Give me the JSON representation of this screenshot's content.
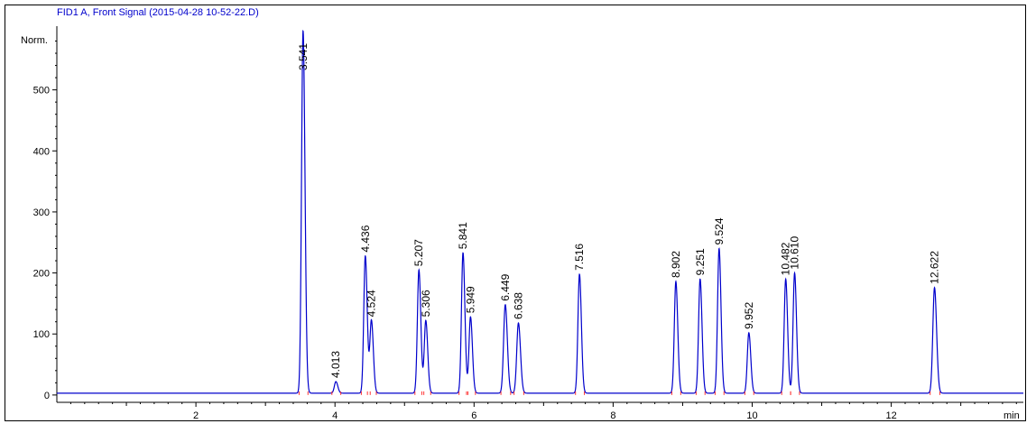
{
  "chart_data": {
    "type": "line",
    "title": "FID1 A, Front Signal (2015-04-28 10-52-22.D)",
    "ylabel": "Norm.",
    "xlabel": "min",
    "xlim": [
      0,
      13.9
    ],
    "ylim": [
      -12,
      597
    ],
    "x_ticks": [
      2,
      4,
      6,
      8,
      10,
      12
    ],
    "y_ticks": [
      0,
      100,
      200,
      300,
      400,
      500
    ],
    "baseline": 3,
    "colors": {
      "trace": "#0000cc",
      "title": "#0000cc",
      "baseline_marks": "#ff3333"
    },
    "series": [
      {
        "peaks": [
          {
            "rt": 3.541,
            "label": "3.541",
            "height": 597,
            "width": 0.022
          },
          {
            "rt": 4.013,
            "label": "4.013",
            "height": 22,
            "width": 0.022
          },
          {
            "rt": 4.436,
            "label": "4.436",
            "height": 228,
            "width": 0.022
          },
          {
            "rt": 4.524,
            "label": "4.524",
            "height": 122,
            "width": 0.022
          },
          {
            "rt": 5.207,
            "label": "5.207",
            "height": 205,
            "width": 0.022
          },
          {
            "rt": 5.306,
            "label": "5.306",
            "height": 122,
            "width": 0.022
          },
          {
            "rt": 5.841,
            "label": "5.841",
            "height": 233,
            "width": 0.022
          },
          {
            "rt": 5.949,
            "label": "5.949",
            "height": 128,
            "width": 0.022
          },
          {
            "rt": 6.449,
            "label": "6.449",
            "height": 148,
            "width": 0.024
          },
          {
            "rt": 6.638,
            "label": "6.638",
            "height": 118,
            "width": 0.024
          },
          {
            "rt": 7.516,
            "label": "7.516",
            "height": 198,
            "width": 0.022
          },
          {
            "rt": 8.902,
            "label": "8.902",
            "height": 186,
            "width": 0.022
          },
          {
            "rt": 9.251,
            "label": "9.251",
            "height": 190,
            "width": 0.022
          },
          {
            "rt": 9.524,
            "label": "9.524",
            "height": 240,
            "width": 0.022
          },
          {
            "rt": 9.952,
            "label": "9.952",
            "height": 102,
            "width": 0.022
          },
          {
            "rt": 10.482,
            "label": "10.482",
            "height": 190,
            "width": 0.022
          },
          {
            "rt": 10.61,
            "label": "10.610",
            "height": 200,
            "width": 0.022
          },
          {
            "rt": 12.622,
            "label": "12.622",
            "height": 176,
            "width": 0.024
          }
        ]
      }
    ],
    "grid": false
  }
}
